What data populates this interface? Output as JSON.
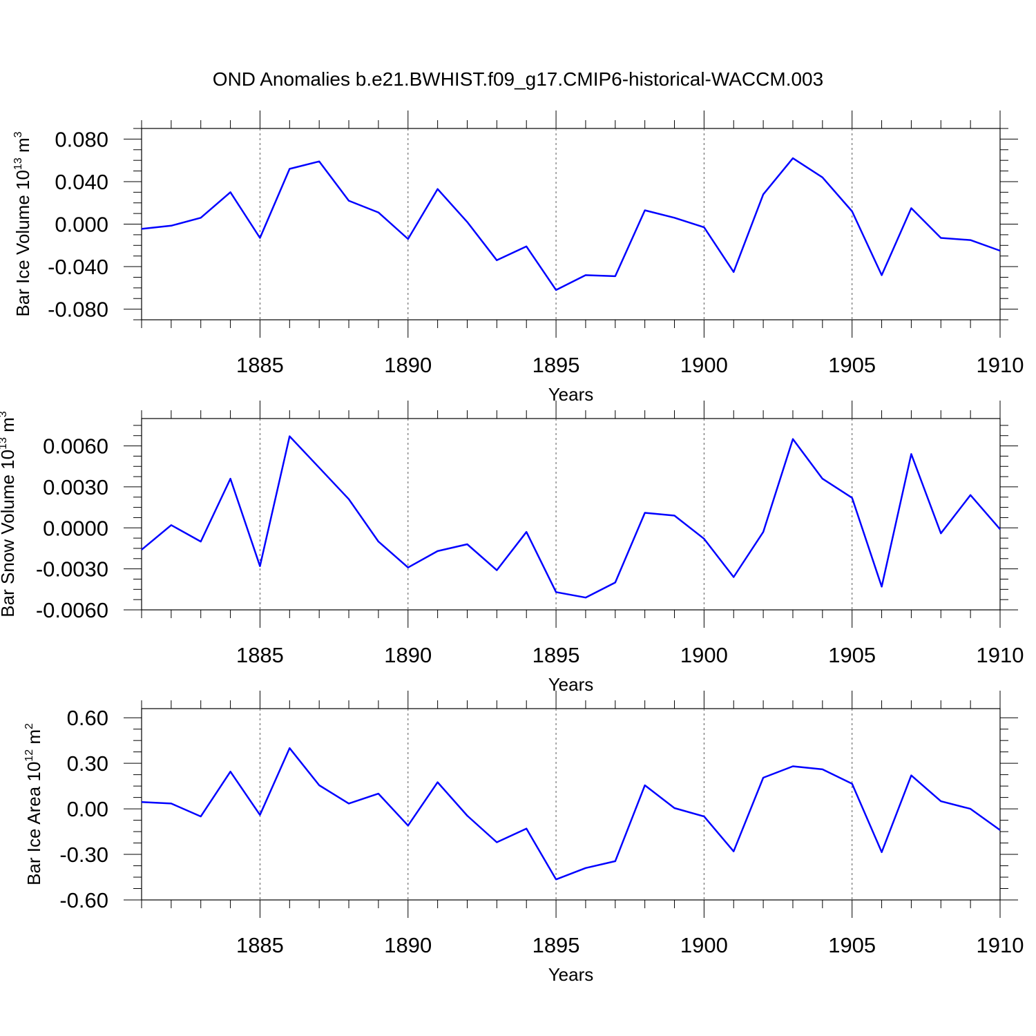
{
  "title": "OND Anomalies b.e21.BWHIST.f09_g17.CMIP6-historical-WACCM.003",
  "line_color": "#0000ff",
  "chart_data": [
    {
      "type": "line",
      "ylabel": "Bar Ice Volume 10",
      "ylabel_exp": "13",
      "ylabel_unit": " m",
      "ylabel_unit_exp": "3",
      "xlabel": "Years",
      "xlim": [
        1881,
        1910
      ],
      "ylim": [
        -0.09,
        0.09
      ],
      "yticks": [
        -0.08,
        -0.04,
        0.0,
        0.04,
        0.08
      ],
      "ytick_labels": [
        "-0.080",
        "-0.040",
        "0.000",
        "0.040",
        "0.080"
      ],
      "xticks": [
        1885,
        1890,
        1895,
        1900,
        1905,
        1910
      ],
      "xtick_labels": [
        "1885",
        "1890",
        "1895",
        "1900",
        "1905",
        "1910"
      ],
      "x": [
        1881,
        1882,
        1883,
        1884,
        1885,
        1886,
        1887,
        1888,
        1889,
        1890,
        1891,
        1892,
        1893,
        1894,
        1895,
        1896,
        1897,
        1898,
        1899,
        1900,
        1901,
        1902,
        1903,
        1904,
        1905,
        1906,
        1907,
        1908,
        1909,
        1910
      ],
      "series": [
        {
          "values": [
            -0.0045,
            -0.0015,
            0.006,
            0.03,
            -0.013,
            0.052,
            0.059,
            0.022,
            0.011,
            -0.014,
            0.033,
            0.002,
            -0.034,
            -0.021,
            -0.062,
            -0.048,
            -0.049,
            0.013,
            0.006,
            -0.003,
            -0.045,
            0.028,
            0.062,
            0.044,
            0.012,
            -0.048,
            0.015,
            -0.013,
            -0.015,
            -0.025
          ]
        }
      ]
    },
    {
      "type": "line",
      "ylabel": "Bar Snow Volume 10",
      "ylabel_exp": "13",
      "ylabel_unit": " m",
      "ylabel_unit_exp": "3",
      "xlabel": "Years",
      "xlim": [
        1881,
        1910
      ],
      "ylim": [
        -0.006,
        0.008
      ],
      "yticks": [
        -0.006,
        -0.003,
        0.0,
        0.003,
        0.006
      ],
      "ytick_labels": [
        "-0.0060",
        "-0.0030",
        "0.0000",
        "0.0030",
        "0.0060"
      ],
      "xticks": [
        1885,
        1890,
        1895,
        1900,
        1905,
        1910
      ],
      "xtick_labels": [
        "1885",
        "1890",
        "1895",
        "1900",
        "1905",
        "1910"
      ],
      "x": [
        1881,
        1882,
        1883,
        1884,
        1885,
        1886,
        1887,
        1888,
        1889,
        1890,
        1891,
        1892,
        1893,
        1894,
        1895,
        1896,
        1897,
        1898,
        1899,
        1900,
        1901,
        1902,
        1903,
        1904,
        1905,
        1906,
        1907,
        1908,
        1909,
        1910
      ],
      "series": [
        {
          "values": [
            -0.0016,
            0.0002,
            -0.001,
            0.0036,
            -0.0028,
            0.0067,
            0.0044,
            0.0021,
            -0.001,
            -0.0029,
            -0.0017,
            -0.0012,
            -0.0031,
            -0.0003,
            -0.0047,
            -0.0051,
            -0.004,
            0.0011,
            0.0009,
            -0.0008,
            -0.0036,
            -0.0003,
            0.0065,
            0.0036,
            0.0022,
            -0.0043,
            0.0054,
            -0.0004,
            0.0024,
            -0.0001
          ]
        }
      ]
    },
    {
      "type": "line",
      "ylabel": "Bar Ice Area 10",
      "ylabel_exp": "12",
      "ylabel_unit": " m",
      "ylabel_unit_exp": "2",
      "xlabel": "Years",
      "xlim": [
        1881,
        1910
      ],
      "ylim": [
        -0.6,
        0.66
      ],
      "yticks": [
        -0.6,
        -0.3,
        0.0,
        0.3,
        0.6
      ],
      "ytick_labels": [
        "-0.60",
        "-0.30",
        "0.00",
        "0.30",
        "0.60"
      ],
      "xticks": [
        1885,
        1890,
        1895,
        1900,
        1905,
        1910
      ],
      "xtick_labels": [
        "1885",
        "1890",
        "1895",
        "1900",
        "1905",
        "1910"
      ],
      "x": [
        1881,
        1882,
        1883,
        1884,
        1885,
        1886,
        1887,
        1888,
        1889,
        1890,
        1891,
        1892,
        1893,
        1894,
        1895,
        1896,
        1897,
        1898,
        1899,
        1900,
        1901,
        1902,
        1903,
        1904,
        1905,
        1906,
        1907,
        1908,
        1909,
        1910
      ],
      "series": [
        {
          "values": [
            0.045,
            0.035,
            -0.05,
            0.245,
            -0.04,
            0.4,
            0.155,
            0.035,
            0.1,
            -0.11,
            0.175,
            -0.045,
            -0.22,
            -0.13,
            -0.465,
            -0.39,
            -0.345,
            0.155,
            0.005,
            -0.05,
            -0.28,
            0.205,
            0.28,
            0.26,
            0.165,
            -0.285,
            0.22,
            0.05,
            0.0,
            -0.14
          ]
        }
      ]
    }
  ]
}
